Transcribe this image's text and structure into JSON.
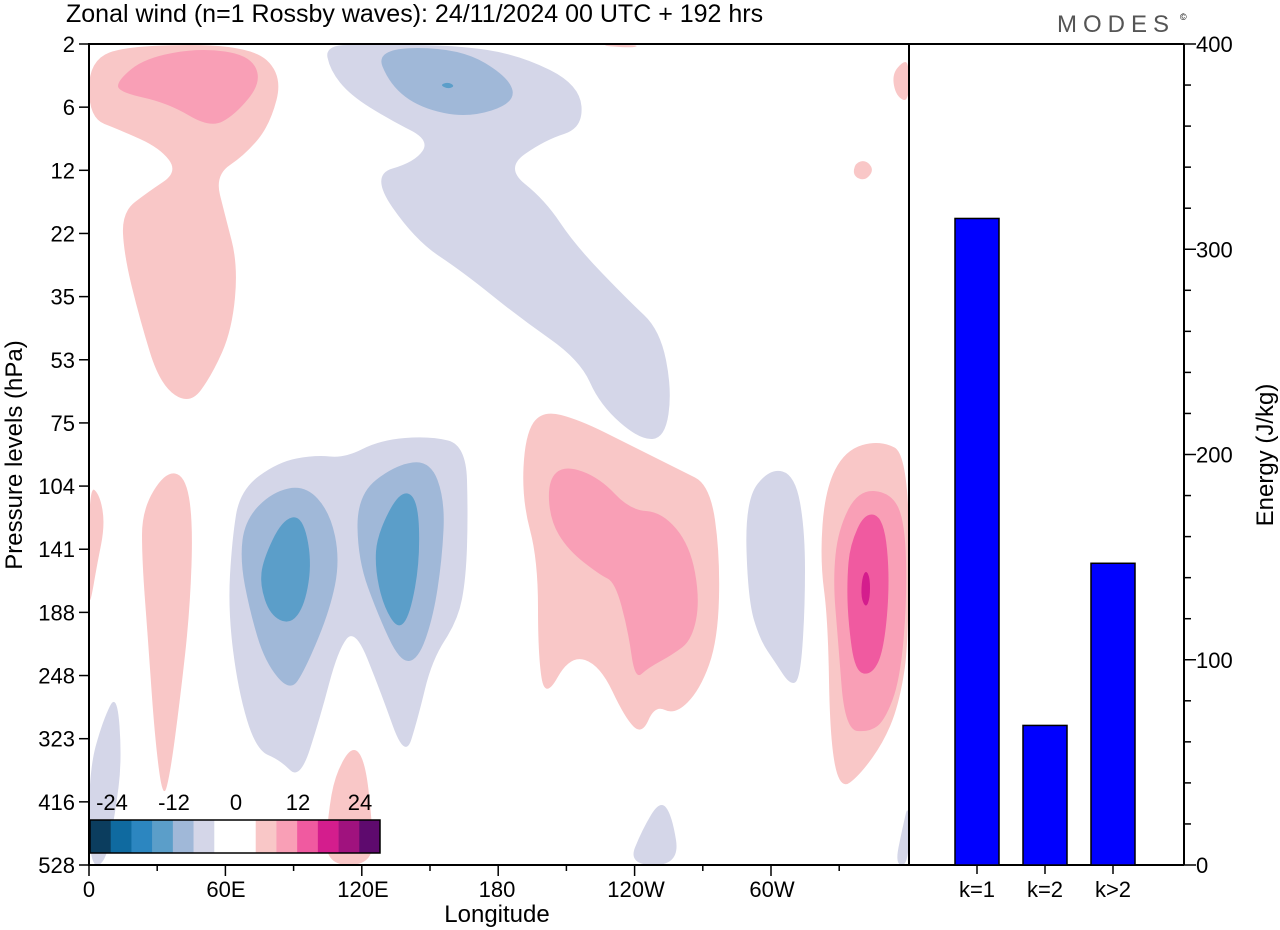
{
  "title": "Zonal wind (n=1 Rossby waves):  24/11/2024  00 UTC  + 192 hrs",
  "brand": "MODES",
  "brand_mark": "©",
  "colors": {
    "neg3": "#5b9ec9",
    "neg2": "#a0b8d8",
    "neg1": "#d4d6e8",
    "pos1": "#f9c7c7",
    "pos2": "#f99fb6",
    "pos3": "#f05aa0",
    "pos4": "#d41d8d",
    "bar": "#0000ff"
  },
  "chart_data": [
    {
      "type": "heatmap",
      "title": "Zonal wind (n=1 Rossby waves):  24/11/2024  00 UTC  + 192 hrs",
      "xlabel": "Longitude",
      "ylabel": "Pressure levels (hPa)",
      "x_ticks": [
        "0",
        "60E",
        "120E",
        "180",
        "120W",
        "60W"
      ],
      "y_ticks": [
        "2",
        "6",
        "12",
        "22",
        "35",
        "53",
        "75",
        "104",
        "141",
        "188",
        "248",
        "323",
        "416",
        "528"
      ],
      "colorbar": {
        "tick_labels": [
          "-24",
          "-12",
          "0",
          "12",
          "24"
        ],
        "colors": [
          "#0b3d5e",
          "#0f6aa0",
          "#2c86c0",
          "#5b9ec9",
          "#a0b8d8",
          "#d4d6e8",
          "#ffffff",
          "#ffffff",
          "#f9c7c7",
          "#f99fb6",
          "#f05aa0",
          "#d41d8d",
          "#a0127e",
          "#5e0a6e"
        ]
      }
    },
    {
      "type": "bar",
      "categories": [
        "k=1",
        "k=2",
        "k>2"
      ],
      "values": [
        315,
        68,
        147
      ],
      "ylabel": "Energy (J/kg)",
      "ylim": [
        0,
        400
      ],
      "y_ticks": [
        0,
        100,
        200,
        300,
        400
      ]
    }
  ]
}
